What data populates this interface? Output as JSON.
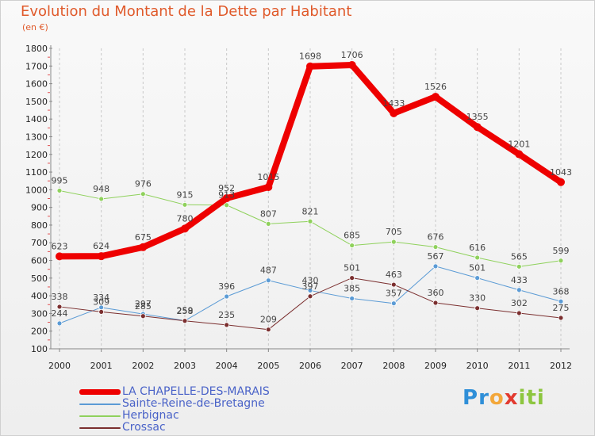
{
  "header": {
    "title": "Evolution du Montant de la Dette par Habitant",
    "subtitle": "(en €)"
  },
  "logo": {
    "text": "Proxiti",
    "letters": [
      "P",
      "r",
      "o",
      "x",
      "i",
      "t",
      "i"
    ],
    "colors": [
      "#2f8fd8",
      "#2f8fd8",
      "#f3a73a",
      "#e23a2f",
      "#8dc63f",
      "#8dc63f",
      "#8dc63f"
    ]
  },
  "chart_data": {
    "type": "line",
    "title": "Evolution du Montant de la Dette par Habitant",
    "subtitle": "(en €)",
    "xlabel": "",
    "ylabel": "",
    "x": [
      "2000",
      "2001",
      "2002",
      "2003",
      "2004",
      "2005",
      "2006",
      "2007",
      "2008",
      "2009",
      "2010",
      "2011",
      "2012"
    ],
    "ylim": [
      100,
      1800
    ],
    "yticks": [
      100,
      200,
      300,
      400,
      500,
      600,
      700,
      800,
      900,
      1000,
      1100,
      1200,
      1300,
      1400,
      1500,
      1600,
      1700,
      1800
    ],
    "grid": "vertical dashed",
    "legend_position": "bottom-left",
    "series": [
      {
        "name": "LA CHAPELLE-DES-MARAIS",
        "color": "#ee0000",
        "width": 8,
        "values": [
          623,
          624,
          675,
          780,
          952,
          1015,
          1698,
          1706,
          1433,
          1526,
          1355,
          1201,
          1043
        ]
      },
      {
        "name": "Sainte-Reine-de-Bretagne",
        "color": "#5b9bd5",
        "width": 1,
        "values": [
          244,
          334,
          297,
          259,
          396,
          487,
          430,
          385,
          357,
          567,
          501,
          433,
          368
        ]
      },
      {
        "name": "Herbignac",
        "color": "#8fd15c",
        "width": 1,
        "values": [
          995,
          948,
          976,
          915,
          913,
          807,
          821,
          685,
          705,
          676,
          616,
          565,
          599
        ]
      },
      {
        "name": "Crossac",
        "color": "#7b2f2f",
        "width": 1,
        "values": [
          338,
          309,
          285,
          258,
          235,
          209,
          397,
          501,
          463,
          360,
          330,
          302,
          275
        ]
      }
    ]
  }
}
